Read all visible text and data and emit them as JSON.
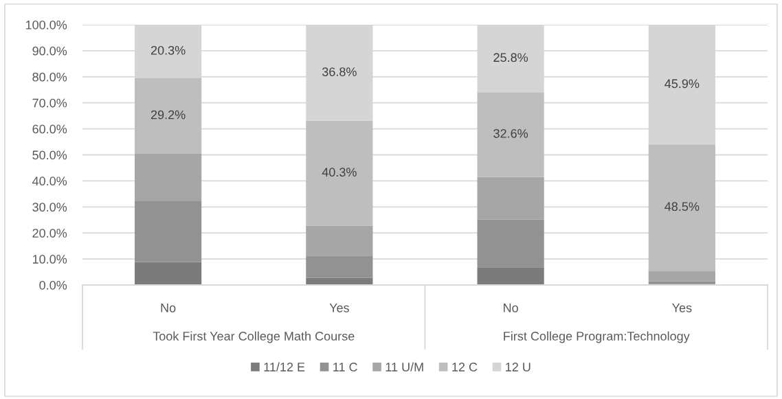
{
  "chart_data": {
    "type": "bar",
    "stacked": true,
    "categories": [
      "No",
      "Yes",
      "No",
      "Yes"
    ],
    "series": [
      {
        "name": "11/12 E",
        "color": "#7b7b7b",
        "values": [
          8.8,
          2.8,
          6.8,
          0.4
        ]
      },
      {
        "name": "11 C",
        "color": "#929292",
        "values": [
          23.4,
          8.5,
          18.3,
          1.0
        ]
      },
      {
        "name": "11 U/M",
        "color": "#a6a6a6",
        "values": [
          18.2,
          11.5,
          16.4,
          4.1
        ]
      },
      {
        "name": "12 C",
        "color": "#bebebe",
        "values": [
          29.2,
          40.3,
          32.6,
          48.5
        ],
        "value_labels": [
          "29.2%",
          "40.3%",
          "32.6%",
          "48.5%"
        ]
      },
      {
        "name": "12 U",
        "color": "#d5d5d5",
        "values": [
          20.3,
          36.8,
          25.8,
          45.9
        ],
        "value_labels": [
          "20.3%",
          "36.8%",
          "25.8%",
          "45.9%"
        ]
      }
    ],
    "ylim": [
      0,
      100
    ],
    "yticks": [
      {
        "value": 0,
        "label": "0.0%"
      },
      {
        "value": 10,
        "label": "10.0%"
      },
      {
        "value": 20,
        "label": "20.0%"
      },
      {
        "value": 30,
        "label": "30.0%"
      },
      {
        "value": 40,
        "label": "40.0%"
      },
      {
        "value": 50,
        "label": "50.0%"
      },
      {
        "value": 60,
        "label": "60.0%"
      },
      {
        "value": 70,
        "label": "70.0%"
      },
      {
        "value": 80,
        "label": "80.0%"
      },
      {
        "value": 90,
        "label": "90.0%"
      },
      {
        "value": 100,
        "label": "100.0%"
      }
    ],
    "grid": "y",
    "legend": "bottom",
    "annotations": [
      "Took First Year College Math Course",
      "First College Program:Technology"
    ]
  }
}
